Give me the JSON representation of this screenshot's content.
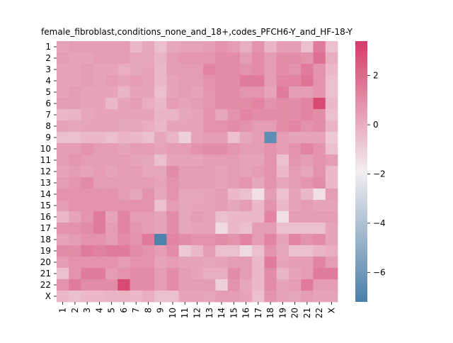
{
  "chart_data": {
    "type": "heatmap",
    "title": "female_fibroblast,conditions_none_and_18+,codes_PFCH6-Y_and_HF-18-Y",
    "xlabel": "",
    "ylabel": "",
    "row_labels": [
      "1",
      "2",
      "3",
      "4",
      "5",
      "6",
      "7",
      "8",
      "9",
      "10",
      "11",
      "12",
      "13",
      "14",
      "15",
      "16",
      "17",
      "18",
      "19",
      "20",
      "21",
      "22",
      "X"
    ],
    "col_labels": [
      "1",
      "2",
      "3",
      "4",
      "5",
      "6",
      "7",
      "8",
      "9",
      "10",
      "11",
      "12",
      "13",
      "14",
      "15",
      "16",
      "17",
      "18",
      "19",
      "20",
      "21",
      "22",
      "X"
    ],
    "values": [
      [
        0.3,
        0.5,
        0.5,
        0.5,
        0.5,
        0.5,
        -0.3,
        0.2,
        -0.5,
        0.2,
        0.3,
        0.3,
        0.5,
        0.8,
        0.5,
        0.0,
        0.8,
        -0.2,
        0.5,
        0.5,
        -0.5,
        1.5,
        -0.5
      ],
      [
        0.5,
        0.3,
        0.3,
        0.5,
        0.5,
        0.5,
        0.2,
        0.2,
        -0.2,
        0.5,
        0.7,
        0.7,
        0.7,
        1.0,
        1.0,
        0.5,
        1.0,
        0.5,
        1.0,
        1.0,
        0.8,
        1.8,
        0.0
      ],
      [
        0.3,
        0.3,
        0.5,
        0.3,
        0.3,
        0.0,
        0.2,
        0.3,
        -0.3,
        0.5,
        0.5,
        0.5,
        1.2,
        1.0,
        1.0,
        0.8,
        1.0,
        0.5,
        1.0,
        0.8,
        1.5,
        0.8,
        -0.3
      ],
      [
        0.3,
        0.3,
        0.5,
        0.3,
        0.5,
        0.3,
        0.5,
        0.3,
        -0.3,
        0.3,
        0.5,
        0.5,
        0.8,
        1.0,
        1.0,
        1.5,
        1.5,
        0.5,
        1.2,
        1.2,
        1.7,
        0.8,
        -0.5
      ],
      [
        0.3,
        0.5,
        0.3,
        0.3,
        0.3,
        -0.2,
        0.3,
        0.3,
        -0.5,
        0.3,
        0.5,
        0.3,
        0.7,
        1.0,
        1.0,
        0.7,
        0.7,
        0.3,
        1.5,
        0.5,
        0.5,
        0.8,
        -0.5
      ],
      [
        0.5,
        0.5,
        0.3,
        0.3,
        -0.3,
        0.3,
        0.5,
        0.0,
        -0.3,
        0.5,
        0.3,
        0.5,
        0.7,
        1.0,
        1.0,
        1.0,
        1.2,
        0.8,
        1.0,
        1.0,
        1.2,
        3.0,
        -0.3
      ],
      [
        -0.3,
        -0.2,
        0.2,
        0.3,
        0.3,
        0.3,
        0.3,
        0.3,
        -0.2,
        -0.2,
        0.2,
        0.3,
        0.8,
        0.2,
        0.8,
        1.2,
        1.0,
        1.0,
        1.0,
        1.0,
        1.2,
        1.0,
        -0.5
      ],
      [
        0.3,
        0.2,
        0.3,
        0.3,
        0.3,
        0.2,
        0.2,
        0.0,
        -0.3,
        0.3,
        0.3,
        0.3,
        0.8,
        0.8,
        1.0,
        0.8,
        0.5,
        0.5,
        1.0,
        1.2,
        0.8,
        1.0,
        -0.2
      ],
      [
        -0.5,
        -0.5,
        -0.3,
        -0.3,
        -0.5,
        -0.2,
        -0.3,
        -0.5,
        0.2,
        -0.2,
        -1.0,
        0.3,
        0.5,
        0.5,
        -0.5,
        0.2,
        0.5,
        -6.5,
        0.5,
        0.3,
        0.3,
        0.3,
        -0.8
      ],
      [
        0.5,
        0.5,
        0.8,
        0.5,
        0.5,
        0.3,
        0.5,
        0.5,
        0.3,
        0.5,
        0.5,
        0.8,
        1.0,
        1.0,
        0.7,
        0.5,
        0.5,
        0.8,
        0.5,
        0.8,
        1.2,
        0.8,
        -0.5
      ],
      [
        0.5,
        0.7,
        0.5,
        0.5,
        0.5,
        0.5,
        0.3,
        0.2,
        -0.5,
        0.3,
        0.3,
        0.3,
        0.5,
        0.5,
        0.5,
        0.3,
        0.3,
        0.8,
        -0.5,
        0.7,
        0.5,
        0.8,
        0.5
      ],
      [
        0.3,
        0.5,
        0.3,
        0.5,
        0.3,
        0.5,
        0.5,
        0.2,
        0.2,
        1.0,
        0.5,
        0.5,
        0.5,
        0.3,
        0.5,
        0.3,
        0.5,
        0.8,
        -0.3,
        0.5,
        0.2,
        0.8,
        -0.3
      ],
      [
        0.5,
        0.7,
        1.0,
        0.5,
        0.5,
        0.5,
        0.5,
        0.5,
        0.3,
        0.8,
        0.5,
        0.5,
        0.5,
        0.3,
        0.5,
        0.7,
        0.2,
        0.8,
        0.2,
        0.5,
        0.7,
        1.0,
        -0.3
      ],
      [
        0.8,
        0.8,
        0.8,
        0.8,
        0.8,
        0.5,
        0.2,
        0.8,
        0.2,
        0.8,
        0.2,
        0.2,
        0.3,
        0.5,
        -0.3,
        -0.5,
        -1.5,
        0.5,
        -0.5,
        0.3,
        -0.3,
        -1.5,
        0.5
      ],
      [
        0.5,
        0.8,
        0.8,
        0.8,
        0.8,
        0.8,
        0.8,
        0.8,
        -0.5,
        0.5,
        0.2,
        0.3,
        0.3,
        0.5,
        0.2,
        0.5,
        -0.3,
        0.8,
        -0.3,
        0.3,
        0.5,
        0.3,
        0.3
      ],
      [
        -0.3,
        0.3,
        0.7,
        1.5,
        0.3,
        1.2,
        0.5,
        0.5,
        0.3,
        1.0,
        0.2,
        0.5,
        0.3,
        -0.5,
        -0.3,
        -0.3,
        -0.3,
        1.2,
        -1.5,
        0.5,
        0.5,
        0.5,
        0.5
      ],
      [
        0.8,
        0.8,
        1.0,
        1.5,
        0.5,
        1.2,
        0.7,
        0.5,
        0.3,
        1.0,
        0.2,
        0.3,
        0.3,
        -1.3,
        -0.3,
        -0.5,
        0.5,
        0.5,
        -0.5,
        -0.5,
        -0.5,
        -0.5,
        0.3
      ],
      [
        0.3,
        0.5,
        0.8,
        0.8,
        0.5,
        1.0,
        0.8,
        1.5,
        -7.0,
        1.2,
        1.0,
        0.8,
        0.8,
        1.0,
        0.8,
        1.2,
        0.5,
        1.2,
        0.3,
        1.2,
        0.8,
        1.0,
        0.3
      ],
      [
        1.0,
        1.0,
        1.5,
        1.3,
        1.5,
        1.5,
        1.0,
        0.8,
        0.5,
        1.0,
        -0.8,
        -0.3,
        0.5,
        -0.5,
        -0.5,
        -1.3,
        -0.5,
        0.8,
        0.2,
        -0.5,
        -0.5,
        -0.2,
        0.0
      ],
      [
        0.5,
        0.8,
        0.8,
        0.8,
        0.8,
        0.5,
        0.8,
        0.8,
        0.3,
        0.5,
        0.3,
        0.3,
        0.2,
        0.3,
        0.5,
        0.5,
        -0.3,
        1.5,
        0.3,
        0.5,
        0.5,
        1.2,
        0.5
      ],
      [
        -0.5,
        0.8,
        1.5,
        1.5,
        0.5,
        0.8,
        1.0,
        1.0,
        0.5,
        1.0,
        0.5,
        0.3,
        0.0,
        0.0,
        1.0,
        0.5,
        -0.3,
        1.0,
        -0.2,
        0.3,
        0.5,
        1.5,
        1.5
      ],
      [
        0.8,
        1.5,
        1.0,
        1.0,
        1.0,
        3.0,
        1.0,
        1.0,
        0.5,
        1.0,
        0.5,
        0.5,
        0.5,
        -1.0,
        0.8,
        0.2,
        -0.3,
        1.0,
        0.3,
        0.5,
        1.5,
        0.5,
        0.5
      ],
      [
        -0.3,
        -0.5,
        -0.3,
        -0.3,
        -0.2,
        -0.2,
        -0.3,
        0.0,
        -0.5,
        -0.5,
        0.3,
        0.3,
        0.2,
        0.5,
        0.5,
        0.3,
        -0.5,
        0.8,
        0.3,
        0.2,
        0.5,
        0.3,
        0.3
      ]
    ],
    "colorbar": {
      "vmin": -7.2,
      "vmax": 3.4,
      "ticks": [
        2,
        0,
        -2,
        -4,
        -6
      ],
      "tick_labels": [
        "2",
        "0",
        "−2",
        "−4",
        "−6"
      ]
    },
    "colors": {
      "low": "#4a7fa8",
      "mid": "#f2eef0",
      "high": "#d63b6b"
    },
    "grid": false,
    "legend": "colorbar-right"
  }
}
